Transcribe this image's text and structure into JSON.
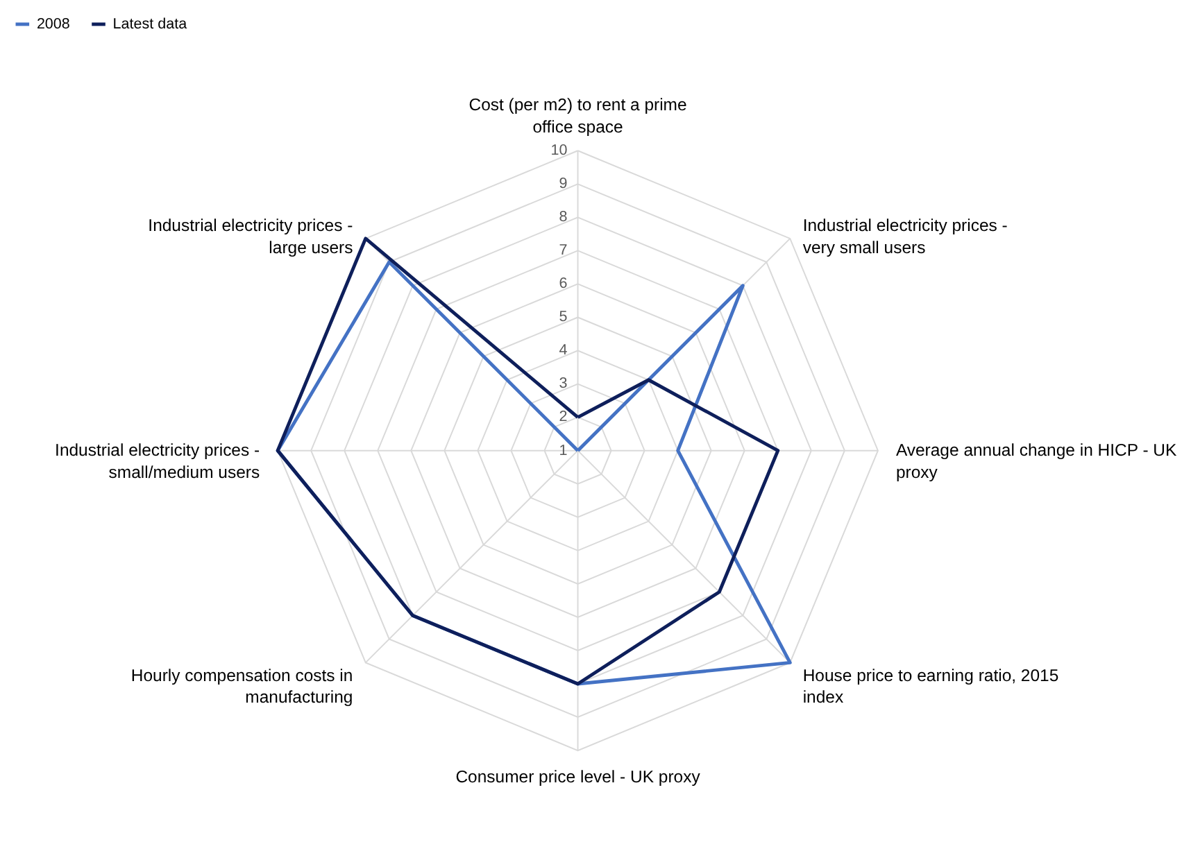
{
  "chart_data": {
    "type": "radar",
    "categories": [
      "Cost (per m2) to rent a prime office space",
      "Industrial electricity prices - very small users",
      "Average annual change in HICP - UK proxy",
      "House price to earning ratio, 2015 index",
      "Consumer price level - UK proxy",
      "Hourly compensation costs in manufacturing",
      "Industrial electricity prices - small/medium users",
      "Industrial electricity prices - large users"
    ],
    "series": [
      {
        "name": "2008",
        "color": "#4472c4",
        "values": [
          1,
          8,
          4,
          10,
          8,
          8,
          10,
          9
        ]
      },
      {
        "name": "Latest data",
        "color": "#0e1f5b",
        "values": [
          2,
          4,
          7,
          7,
          8,
          8,
          10,
          10
        ]
      }
    ],
    "ylim": [
      1,
      10
    ],
    "yticks": [
      1,
      2,
      3,
      4,
      5,
      6,
      7,
      8,
      9,
      10
    ],
    "grid": true,
    "legend": "top"
  }
}
